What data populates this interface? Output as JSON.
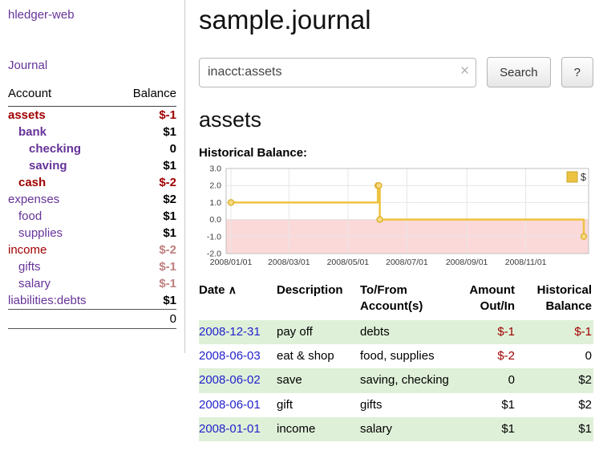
{
  "colors": {
    "link_purple": "#663399",
    "negative_red": "#a00000",
    "negative_faded": "#c08080",
    "date_blue": "#2222cc",
    "row_green": "#dff0d8",
    "chart_line": "#edc240",
    "chart_marker_fill": "#f8dc84",
    "chart_negative_fill": "#fcd9d9"
  },
  "icons": {
    "clear": "×",
    "sort_asc": "∧"
  },
  "app": {
    "title": "hledger-web"
  },
  "sidebar": {
    "journal_link": "Journal",
    "accounts": {
      "header_account": "Account",
      "header_balance": "Balance",
      "rows": [
        {
          "name": "assets",
          "balance": "$-1",
          "indent": 0,
          "bold": true,
          "name_color": "red",
          "balance_color": "red"
        },
        {
          "name": "bank",
          "balance": "$1",
          "indent": 1,
          "bold": true,
          "name_color": "purple",
          "balance_color": "black"
        },
        {
          "name": "checking",
          "balance": "0",
          "indent": 2,
          "bold": true,
          "name_color": "purple",
          "balance_color": "black"
        },
        {
          "name": "saving",
          "balance": "$1",
          "indent": 2,
          "bold": true,
          "name_color": "purple",
          "balance_color": "black"
        },
        {
          "name": "cash",
          "balance": "$-2",
          "indent": 1,
          "bold": true,
          "name_color": "red",
          "balance_color": "red"
        },
        {
          "name": "expenses",
          "balance": "$2",
          "indent": 0,
          "bold": false,
          "name_color": "purple",
          "balance_color": "black"
        },
        {
          "name": "food",
          "balance": "$1",
          "indent": 1,
          "bold": false,
          "name_color": "purple",
          "balance_color": "black"
        },
        {
          "name": "supplies",
          "balance": "$1",
          "indent": 1,
          "bold": false,
          "name_color": "purple",
          "balance_color": "black"
        },
        {
          "name": "income",
          "balance": "$-2",
          "indent": 0,
          "bold": false,
          "name_color": "red",
          "balance_color": "red-faded"
        },
        {
          "name": "gifts",
          "balance": "$-1",
          "indent": 1,
          "bold": false,
          "name_color": "purple",
          "balance_color": "red-faded"
        },
        {
          "name": "salary",
          "balance": "$-1",
          "indent": 1,
          "bold": false,
          "name_color": "purple",
          "balance_color": "red-faded"
        },
        {
          "name": "liabilities:debts",
          "balance": "$1",
          "indent": 0,
          "bold": false,
          "name_color": "purple",
          "balance_color": "black"
        }
      ],
      "total": "0"
    }
  },
  "main": {
    "title": "sample.journal",
    "search": {
      "value": "inacct:assets",
      "button": "Search",
      "help": "?"
    },
    "account_heading": "assets",
    "chart_heading": "Historical Balance:"
  },
  "chart_data": {
    "type": "line",
    "step": true,
    "title": "Historical Balance",
    "series": [
      {
        "name": "$",
        "points": [
          [
            "2008-01-01",
            1
          ],
          [
            "2008-06-01",
            2
          ],
          [
            "2008-06-02",
            2
          ],
          [
            "2008-06-03",
            0
          ],
          [
            "2008-12-31",
            -1
          ]
        ]
      }
    ],
    "ylim": [
      -2,
      3
    ],
    "yticks": [
      3,
      2,
      1,
      0,
      -1,
      -2
    ],
    "ytick_labels": [
      "3.0",
      "2.0",
      "1.0",
      "0.0",
      "-1.0",
      "-2.0"
    ],
    "xtick_labels": [
      "2008/01/01",
      "2008/03/01",
      "2008/05/01",
      "2008/07/01",
      "2008/09/01",
      "2008/11/01"
    ],
    "legend": "$",
    "legend_position": "top-right",
    "grid": true,
    "negative_region_shaded": true
  },
  "register": {
    "headers": [
      "Date",
      "Description",
      "To/From Account(s)",
      "Amount Out/In",
      "Historical Balance"
    ],
    "rows": [
      {
        "date": "2008-12-31",
        "description": "pay off",
        "accounts": "debts",
        "amount": "$-1",
        "balance": "$-1"
      },
      {
        "date": "2008-06-03",
        "description": "eat & shop",
        "accounts": "food, supplies",
        "amount": "$-2",
        "balance": "0"
      },
      {
        "date": "2008-06-02",
        "description": "save",
        "accounts": "saving, checking",
        "amount": "0",
        "balance": "$2"
      },
      {
        "date": "2008-06-01",
        "description": "gift",
        "accounts": "gifts",
        "amount": "$1",
        "balance": "$2"
      },
      {
        "date": "2008-01-01",
        "description": "income",
        "accounts": "salary",
        "amount": "$1",
        "balance": "$1"
      }
    ]
  }
}
